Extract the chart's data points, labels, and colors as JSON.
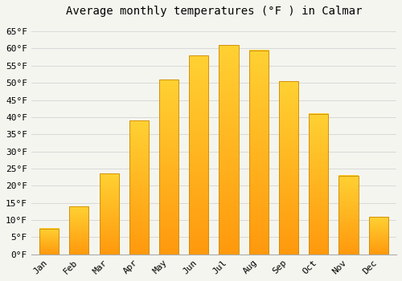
{
  "title": "Average monthly temperatures (°F ) in Calmar",
  "months": [
    "Jan",
    "Feb",
    "Mar",
    "Apr",
    "May",
    "Jun",
    "Jul",
    "Aug",
    "Sep",
    "Oct",
    "Nov",
    "Dec"
  ],
  "values": [
    7.5,
    14,
    23.5,
    39,
    51,
    58,
    61,
    59.5,
    50.5,
    41,
    23,
    11
  ],
  "ylim": [
    0,
    68
  ],
  "yticks": [
    0,
    5,
    10,
    15,
    20,
    25,
    30,
    35,
    40,
    45,
    50,
    55,
    60,
    65
  ],
  "ytick_labels": [
    "0°F",
    "5°F",
    "10°F",
    "15°F",
    "20°F",
    "25°F",
    "30°F",
    "35°F",
    "40°F",
    "45°F",
    "50°F",
    "55°F",
    "60°F",
    "65°F"
  ],
  "bg_color": "#f5f5f0",
  "grid_color": "#d8d8d8",
  "title_fontsize": 10,
  "tick_fontsize": 8,
  "bar_width": 0.65,
  "bar_color_bottom": "#FFD000",
  "bar_color_top": "#FF9800",
  "bar_border_color": "#CC8800"
}
